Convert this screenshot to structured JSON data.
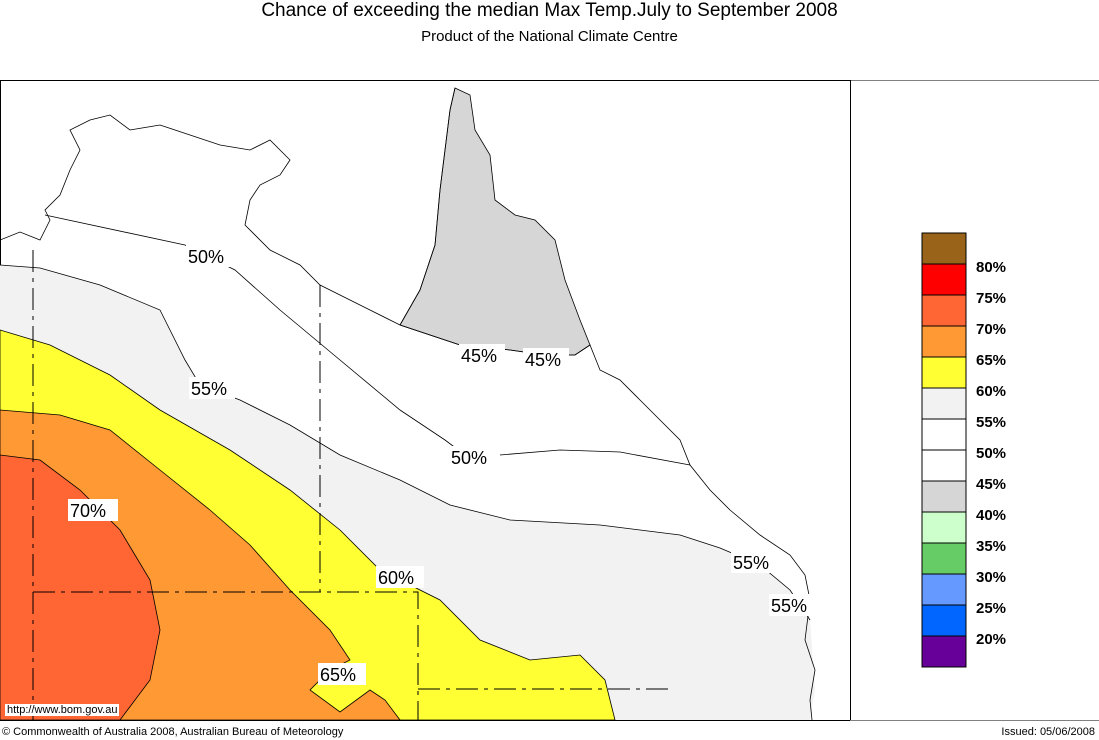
{
  "title": "Chance of exceeding the median Max Temp.July to September 2008",
  "subtitle": "Product of the National Climate Centre",
  "map_labels": [
    "50%",
    "55%",
    "45%",
    "45%",
    "50%",
    "70%",
    "60%",
    "65%",
    "55%",
    "55%"
  ],
  "legend": {
    "colors": [
      "#996319",
      "#ff0000",
      "#ff6633",
      "#ff9933",
      "#ffff33",
      "#f2f2f2",
      "#ffffff",
      "#ffffff",
      "#d6d6d6",
      "#ccffcc",
      "#66cc66",
      "#6699ff",
      "#0066ff",
      "#660099"
    ],
    "labels": [
      "80%",
      "75%",
      "70%",
      "65%",
      "60%",
      "55%",
      "50%",
      "45%",
      "40%",
      "35%",
      "30%",
      "25%",
      "20%"
    ]
  },
  "url": "http://www.bom.gov.au",
  "copyright": "© Commonwealth of Australia 2008, Australian Bureau of Meteorology",
  "issued": "Issued: 05/06/2008"
}
